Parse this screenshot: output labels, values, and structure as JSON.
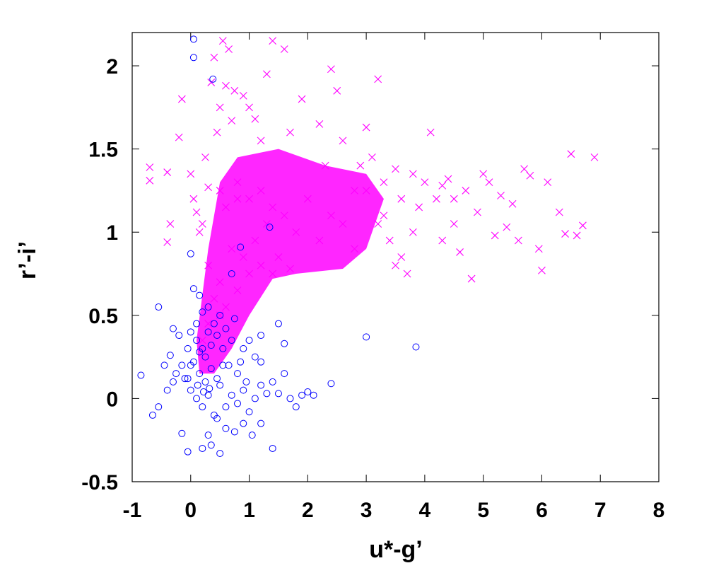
{
  "chart_data": {
    "type": "scatter",
    "title": "",
    "xlabel": "u*-g’",
    "ylabel": "r’-i’",
    "xlim": [
      -1,
      8
    ],
    "ylim": [
      -0.5,
      2.2
    ],
    "x_ticks": [
      -1,
      0,
      1,
      2,
      3,
      4,
      5,
      6,
      7,
      8
    ],
    "y_ticks": [
      -0.5,
      0,
      0.5,
      1,
      1.5,
      2
    ],
    "x_tick_labels": [
      "-1",
      "0",
      "1",
      "2",
      "3",
      "4",
      "5",
      "6",
      "7",
      "8"
    ],
    "y_tick_labels": [
      "-0.5",
      "0",
      "0.5",
      "1",
      "1.5",
      "2"
    ],
    "grid": false,
    "legend": "none",
    "series": [
      {
        "marker": "x",
        "color": "#ff00ff",
        "points": [
          [
            -0.7,
            1.39
          ],
          [
            -0.7,
            1.31
          ],
          [
            -0.4,
            1.36
          ],
          [
            -0.4,
            0.94
          ],
          [
            -0.35,
            1.05
          ],
          [
            -0.2,
            1.57
          ],
          [
            -0.15,
            1.8
          ],
          [
            0.0,
            1.35
          ],
          [
            0.05,
            1.2
          ],
          [
            0.1,
            1.12
          ],
          [
            0.15,
            1.0
          ],
          [
            0.2,
            1.05
          ],
          [
            0.25,
            1.45
          ],
          [
            0.3,
            1.27
          ],
          [
            0.35,
            1.9
          ],
          [
            0.4,
            2.05
          ],
          [
            0.45,
            1.6
          ],
          [
            0.5,
            1.75
          ],
          [
            0.55,
            2.15
          ],
          [
            0.6,
            1.88
          ],
          [
            0.65,
            2.1
          ],
          [
            0.7,
            1.67
          ],
          [
            0.75,
            1.85
          ],
          [
            0.8,
            1.2
          ],
          [
            0.9,
            1.82
          ],
          [
            1.0,
            1.75
          ],
          [
            1.1,
            1.68
          ],
          [
            1.2,
            1.55
          ],
          [
            1.3,
            1.95
          ],
          [
            1.4,
            2.15
          ],
          [
            1.6,
            2.1
          ],
          [
            1.7,
            1.6
          ],
          [
            1.9,
            1.8
          ],
          [
            2.2,
            1.65
          ],
          [
            2.3,
            1.4
          ],
          [
            2.4,
            1.98
          ],
          [
            2.5,
            1.85
          ],
          [
            2.6,
            1.55
          ],
          [
            2.8,
            1.25
          ],
          [
            3.0,
            1.63
          ],
          [
            3.1,
            1.45
          ],
          [
            3.2,
            1.92
          ],
          [
            3.3,
            1.1
          ],
          [
            3.5,
            0.8
          ],
          [
            3.6,
            0.85
          ],
          [
            3.7,
            0.75
          ],
          [
            3.8,
            1.35
          ],
          [
            3.9,
            1.15
          ],
          [
            4.0,
            1.3
          ],
          [
            4.1,
            1.6
          ],
          [
            4.2,
            1.2
          ],
          [
            4.3,
            0.95
          ],
          [
            4.4,
            1.32
          ],
          [
            4.5,
            1.05
          ],
          [
            4.6,
            0.88
          ],
          [
            4.7,
            1.25
          ],
          [
            4.8,
            0.72
          ],
          [
            4.9,
            1.12
          ],
          [
            5.0,
            1.35
          ],
          [
            5.1,
            1.3
          ],
          [
            5.2,
            0.98
          ],
          [
            5.3,
            1.22
          ],
          [
            5.4,
            1.03
          ],
          [
            5.5,
            1.17
          ],
          [
            5.6,
            0.95
          ],
          [
            5.7,
            1.38
          ],
          [
            5.8,
            1.34
          ],
          [
            5.95,
            0.9
          ],
          [
            6.0,
            0.77
          ],
          [
            6.1,
            1.3
          ],
          [
            6.3,
            1.12
          ],
          [
            6.4,
            0.99
          ],
          [
            6.5,
            1.47
          ],
          [
            6.6,
            0.98
          ],
          [
            6.7,
            1.04
          ],
          [
            6.9,
            1.45
          ],
          [
            0.5,
            1.25
          ],
          [
            0.6,
            1.15
          ],
          [
            0.8,
            1.3
          ],
          [
            1.0,
            1.2
          ],
          [
            1.2,
            1.25
          ],
          [
            1.4,
            1.15
          ],
          [
            1.6,
            1.1
          ],
          [
            1.8,
            1.0
          ],
          [
            2.0,
            1.2
          ],
          [
            2.2,
            0.95
          ],
          [
            2.4,
            1.1
          ],
          [
            2.6,
            1.05
          ],
          [
            2.8,
            0.9
          ],
          [
            0.3,
            0.8
          ],
          [
            0.5,
            0.7
          ],
          [
            0.7,
            0.9
          ],
          [
            0.9,
            0.85
          ],
          [
            1.1,
            0.95
          ],
          [
            1.3,
            1.05
          ],
          [
            1.5,
            0.85
          ],
          [
            0.4,
            0.6
          ],
          [
            0.5,
            0.5
          ],
          [
            0.6,
            0.55
          ],
          [
            0.3,
            0.45
          ],
          [
            0.2,
            0.35
          ],
          [
            0.8,
            0.65
          ],
          [
            1.0,
            0.75
          ],
          [
            1.2,
            0.8
          ],
          [
            1.4,
            0.75
          ],
          [
            1.7,
            0.78
          ],
          [
            3.0,
            1.25
          ],
          [
            3.3,
            1.3
          ],
          [
            3.6,
            1.2
          ],
          [
            3.4,
            0.95
          ],
          [
            3.8,
            1.0
          ],
          [
            4.3,
            1.28
          ],
          [
            4.5,
            1.2
          ],
          [
            3.5,
            1.38
          ],
          [
            2.9,
            1.4
          ],
          [
            3.2,
            1.05
          ]
        ]
      },
      {
        "marker": "circle",
        "color": "#0000ff",
        "points": [
          [
            0.05,
            2.16
          ],
          [
            0.05,
            2.05
          ],
          [
            0.38,
            1.92
          ],
          [
            1.35,
            1.03
          ],
          [
            0.0,
            0.87
          ],
          [
            0.85,
            0.91
          ],
          [
            -0.55,
            0.55
          ],
          [
            0.05,
            0.66
          ],
          [
            0.15,
            0.62
          ],
          [
            0.7,
            0.75
          ],
          [
            -0.3,
            0.42
          ],
          [
            -0.2,
            0.38
          ],
          [
            -0.35,
            0.26
          ],
          [
            -0.45,
            0.2
          ],
          [
            -0.25,
            0.15
          ],
          [
            -0.15,
            0.2
          ],
          [
            -0.05,
            0.3
          ],
          [
            0.0,
            0.4
          ],
          [
            0.05,
            0.22
          ],
          [
            0.1,
            0.35
          ],
          [
            0.15,
            0.28
          ],
          [
            0.2,
            0.3
          ],
          [
            0.25,
            0.25
          ],
          [
            0.3,
            0.4
          ],
          [
            0.35,
            0.32
          ],
          [
            0.4,
            0.45
          ],
          [
            0.45,
            0.38
          ],
          [
            0.5,
            0.5
          ],
          [
            0.55,
            0.3
          ],
          [
            0.6,
            0.42
          ],
          [
            0.65,
            0.2
          ],
          [
            0.7,
            0.35
          ],
          [
            0.75,
            0.48
          ],
          [
            0.8,
            0.15
          ],
          [
            0.85,
            0.22
          ],
          [
            0.9,
            0.3
          ],
          [
            0.95,
            0.1
          ],
          [
            1.0,
            0.35
          ],
          [
            1.1,
            0.25
          ],
          [
            1.2,
            0.38
          ],
          [
            -0.85,
            0.14
          ],
          [
            -0.65,
            -0.1
          ],
          [
            -0.55,
            -0.05
          ],
          [
            -0.4,
            0.05
          ],
          [
            -0.3,
            0.1
          ],
          [
            -0.1,
            0.12
          ],
          [
            0.0,
            0.05
          ],
          [
            0.1,
            0.0
          ],
          [
            0.2,
            -0.05
          ],
          [
            0.3,
            0.02
          ],
          [
            0.4,
            -0.1
          ],
          [
            0.5,
            0.08
          ],
          [
            0.6,
            -0.05
          ],
          [
            0.7,
            0.02
          ],
          [
            0.8,
            -0.03
          ],
          [
            0.9,
            0.05
          ],
          [
            1.0,
            -0.08
          ],
          [
            1.1,
            0.0
          ],
          [
            1.2,
            0.08
          ],
          [
            1.3,
            0.03
          ],
          [
            1.4,
            0.1
          ],
          [
            1.5,
            0.03
          ],
          [
            1.6,
            0.15
          ],
          [
            1.7,
            0.0
          ],
          [
            1.8,
            -0.05
          ],
          [
            1.9,
            0.02
          ],
          [
            2.0,
            0.04
          ],
          [
            2.1,
            0.02
          ],
          [
            2.4,
            0.09
          ],
          [
            3.0,
            0.37
          ],
          [
            3.85,
            0.31
          ],
          [
            1.5,
            0.45
          ],
          [
            1.6,
            0.33
          ],
          [
            1.2,
            0.22
          ],
          [
            -0.15,
            -0.21
          ],
          [
            -0.05,
            -0.32
          ],
          [
            0.2,
            -0.3
          ],
          [
            0.35,
            -0.28
          ],
          [
            0.5,
            -0.33
          ],
          [
            0.45,
            -0.12
          ],
          [
            0.3,
            -0.22
          ],
          [
            0.75,
            -0.2
          ],
          [
            0.9,
            -0.15
          ],
          [
            1.05,
            -0.22
          ],
          [
            1.2,
            -0.15
          ],
          [
            1.4,
            -0.3
          ],
          [
            0.6,
            -0.18
          ],
          [
            0.15,
            0.15
          ],
          [
            0.25,
            0.1
          ],
          [
            0.35,
            0.18
          ],
          [
            0.45,
            0.12
          ],
          [
            0.55,
            0.2
          ],
          [
            0.1,
            0.45
          ],
          [
            0.2,
            0.52
          ],
          [
            0.3,
            0.55
          ],
          [
            0.0,
            0.2
          ],
          [
            -0.05,
            0.12
          ],
          [
            0.12,
            0.08
          ],
          [
            0.22,
            0.04
          ],
          [
            0.32,
            0.06
          ]
        ]
      }
    ]
  }
}
